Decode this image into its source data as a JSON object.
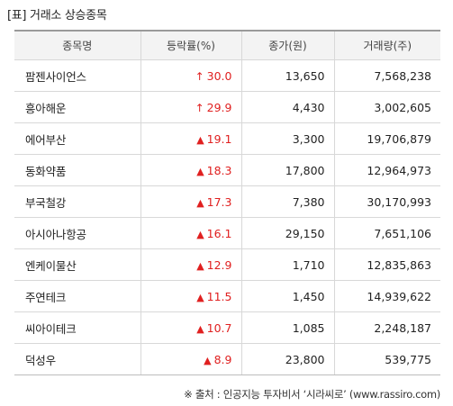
{
  "title": "[표] 거래소 상승종목",
  "table": {
    "headers": [
      "종목명",
      "등락률(%)",
      "종가(원)",
      "거래량(주)"
    ],
    "rows": [
      {
        "name": "팜젠사이언스",
        "mark": "↑",
        "change": "30.0",
        "price": "13,650",
        "volume": "7,568,238"
      },
      {
        "name": "흥아해운",
        "mark": "↑",
        "change": "29.9",
        "price": "4,430",
        "volume": "3,002,605"
      },
      {
        "name": "에어부산",
        "mark": "▲",
        "change": "19.1",
        "price": "3,300",
        "volume": "19,706,879"
      },
      {
        "name": "동화약품",
        "mark": "▲",
        "change": "18.3",
        "price": "17,800",
        "volume": "12,964,973"
      },
      {
        "name": "부국철강",
        "mark": "▲",
        "change": "17.3",
        "price": "7,380",
        "volume": "30,170,993"
      },
      {
        "name": "아시아나항공",
        "mark": "▲",
        "change": "16.1",
        "price": "29,150",
        "volume": "7,651,106"
      },
      {
        "name": "엔케이물산",
        "mark": "▲",
        "change": "12.9",
        "price": "1,710",
        "volume": "12,835,863"
      },
      {
        "name": "주연테크",
        "mark": "▲",
        "change": "11.5",
        "price": "1,450",
        "volume": "14,939,622"
      },
      {
        "name": "씨아이테크",
        "mark": "▲",
        "change": "10.7",
        "price": "1,085",
        "volume": "2,248,187"
      },
      {
        "name": "덕성우",
        "mark": "▲",
        "change": "8.9",
        "price": "23,800",
        "volume": "539,775"
      }
    ]
  },
  "source": "※ 출처 : 인공지능 투자비서 ‘시라씨로’ (www.rassiro.com)",
  "colors": {
    "up": "#e02020",
    "header_bg": "#f3f3f3",
    "border": "#d8d8d8"
  }
}
